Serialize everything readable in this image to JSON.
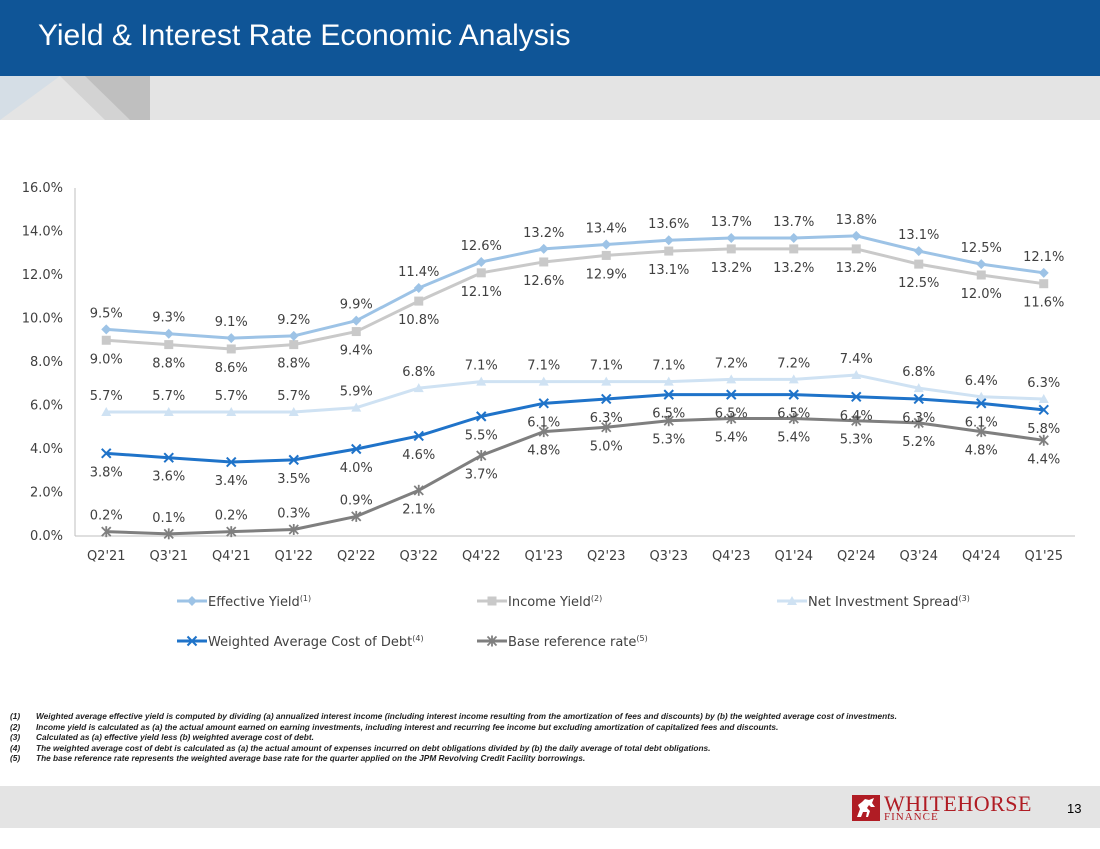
{
  "header": {
    "title": "Yield & Interest Rate Economic Analysis"
  },
  "chart_data": {
    "type": "line",
    "ylim": [
      0,
      16
    ],
    "yticks": [
      "0.0%",
      "2.0%",
      "4.0%",
      "6.0%",
      "8.0%",
      "10.0%",
      "12.0%",
      "14.0%",
      "16.0%"
    ],
    "categories": [
      "Q2'21",
      "Q3'21",
      "Q4'21",
      "Q1'22",
      "Q2'22",
      "Q3'22",
      "Q4'22",
      "Q1'23",
      "Q2'23",
      "Q3'23",
      "Q4'23",
      "Q1'24",
      "Q2'24",
      "Q3'24",
      "Q4'24",
      "Q1'25"
    ],
    "series": [
      {
        "name": "Effective Yield",
        "sup": "(1)",
        "color": "#9dc3e6",
        "marker": "diamond",
        "values": [
          9.5,
          9.3,
          9.1,
          9.2,
          9.9,
          11.4,
          12.6,
          13.2,
          13.4,
          13.6,
          13.7,
          13.7,
          13.8,
          13.1,
          12.5,
          12.1
        ],
        "labels": [
          "9.5%",
          "9.3%",
          "9.1%",
          "9.2%",
          "9.9%",
          "11.4%",
          "12.6%",
          "13.2%",
          "13.4%",
          "13.6%",
          "13.7%",
          "13.7%",
          "13.8%",
          "13.1%",
          "12.5%",
          "12.1%"
        ],
        "label_pos": "above"
      },
      {
        "name": "Income Yield",
        "sup": "(2)",
        "color": "#c9c9c9",
        "marker": "square",
        "values": [
          9.0,
          8.8,
          8.6,
          8.8,
          9.4,
          10.8,
          12.1,
          12.6,
          12.9,
          13.1,
          13.2,
          13.2,
          13.2,
          12.5,
          12.0,
          11.6
        ],
        "labels": [
          "9.0%",
          "8.8%",
          "8.6%",
          "8.8%",
          "9.4%",
          "10.8%",
          "12.1%",
          "12.6%",
          "12.9%",
          "13.1%",
          "13.2%",
          "13.2%",
          "13.2%",
          "12.5%",
          "12.0%",
          "11.6%"
        ],
        "label_pos": "below"
      },
      {
        "name": "Net Investment Spread",
        "sup": "(3)",
        "color": "#cfe2f3",
        "marker": "triangle",
        "values": [
          5.7,
          5.7,
          5.7,
          5.7,
          5.9,
          6.8,
          7.1,
          7.1,
          7.1,
          7.1,
          7.2,
          7.2,
          7.4,
          6.8,
          6.4,
          6.3
        ],
        "labels": [
          "5.7%",
          "5.7%",
          "5.7%",
          "5.7%",
          "5.9%",
          "6.8%",
          "7.1%",
          "7.1%",
          "7.1%",
          "7.1%",
          "7.2%",
          "7.2%",
          "7.4%",
          "6.8%",
          "6.4%",
          "6.3%"
        ],
        "label_pos": "above"
      },
      {
        "name": "Weighted Average Cost of Debt",
        "sup": "(4)",
        "color": "#1f73c9",
        "marker": "x",
        "values": [
          3.8,
          3.6,
          3.4,
          3.5,
          4.0,
          4.6,
          5.5,
          6.1,
          6.3,
          6.5,
          6.5,
          6.5,
          6.4,
          6.3,
          6.1,
          5.8
        ],
        "labels": [
          "3.8%",
          "3.6%",
          "3.4%",
          "3.5%",
          "4.0%",
          "4.6%",
          "5.5%",
          "6.1%",
          "6.3%",
          "6.5%",
          "6.5%",
          "6.5%",
          "6.4%",
          "6.3%",
          "6.1%",
          "5.8%"
        ],
        "label_pos": "below"
      },
      {
        "name": "Base reference rate",
        "sup": "(5)",
        "color": "#7f7f7f",
        "marker": "star",
        "values": [
          0.2,
          0.1,
          0.2,
          0.3,
          0.9,
          2.1,
          3.7,
          4.8,
          5.0,
          5.3,
          5.4,
          5.4,
          5.3,
          5.2,
          4.8,
          4.4
        ],
        "labels": [
          "0.2%",
          "0.1%",
          "0.2%",
          "0.3%",
          "0.9%",
          "2.1%",
          "3.7%",
          "4.8%",
          "5.0%",
          "5.3%",
          "5.4%",
          "5.4%",
          "5.3%",
          "5.2%",
          "4.8%",
          "4.4%"
        ],
        "label_pos": "mixed"
      }
    ]
  },
  "footnotes": [
    {
      "num": "(1)",
      "text": "Weighted average effective yield is computed by dividing (a) annualized interest income (including interest income resulting from the amortization of fees and discounts) by (b) the weighted average cost of investments."
    },
    {
      "num": "(2)",
      "text": "Income yield is calculated as (a) the actual amount earned on earning investments, including interest and recurring fee income but excluding amortization of capitalized fees and discounts."
    },
    {
      "num": "(3)",
      "text": "Calculated as (a) effective yield less (b) weighted average cost of debt."
    },
    {
      "num": "(4)",
      "text": "The weighted average cost of debt is calculated as (a) the actual amount of expenses incurred on debt obligations divided by (b) the daily average of total debt obligations."
    },
    {
      "num": "(5)",
      "text": "The base reference rate represents the weighted average base rate for the quarter applied on the JPM Revolving Credit Facility borrowings."
    }
  ],
  "footer": {
    "logo_main": "WHITEHORSE",
    "logo_sub": "FINANCE",
    "page_number": "13"
  }
}
